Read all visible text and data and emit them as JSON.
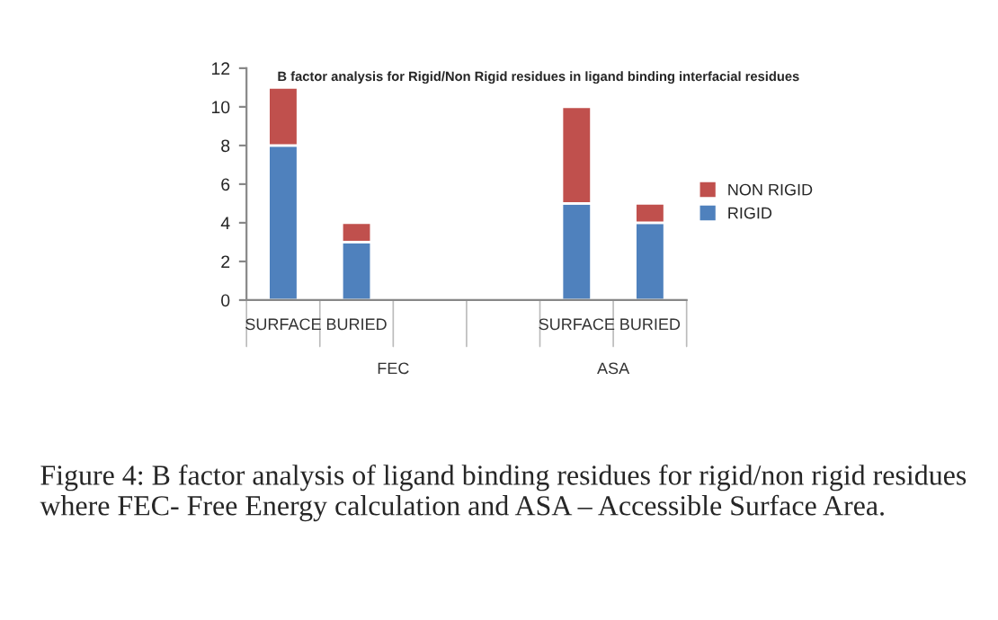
{
  "chart_data": {
    "type": "bar",
    "stacked": true,
    "title": "B factor analysis for Rigid/Non Rigid residues in ligand binding interfacial residues",
    "categories": [
      "SURFACE",
      "BURIED",
      null,
      null,
      "SURFACE",
      "BURIED"
    ],
    "series": [
      {
        "name": "RIGID",
        "color": "#4f81bd",
        "values": [
          8,
          3,
          null,
          null,
          5,
          4
        ]
      },
      {
        "name": "NON RIGID",
        "color": "#c0504d",
        "values": [
          3,
          1,
          null,
          null,
          5,
          1
        ]
      }
    ],
    "ylim": [
      0,
      12
    ],
    "yticks": [
      0,
      2,
      4,
      6,
      8,
      10,
      12
    ],
    "legend": "right",
    "grid": false,
    "annotations": [
      "FEC",
      "ASA",
      "Figure 4: B factor analysis of ligand binding residues for rigid/non rigid residues where FEC- Free Energy calculation and ASA – Accessible Surface Area."
    ]
  }
}
